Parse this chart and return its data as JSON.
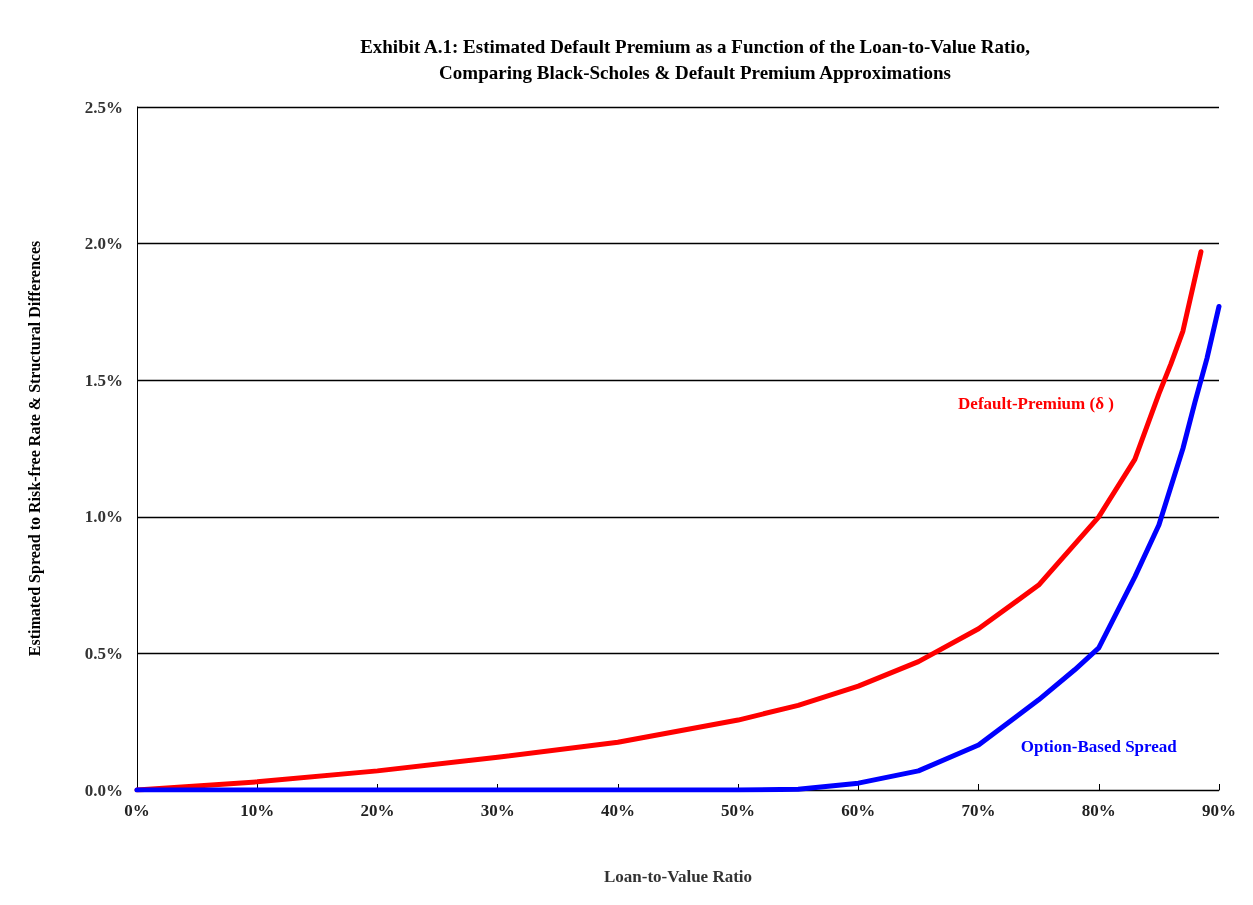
{
  "chart_data": {
    "type": "line",
    "title": "Exhibit A.1: Estimated Default Premium as a Function of the Loan-to-Value Ratio,\nComparing Black-Scholes & Default Premium Approximations",
    "xlabel": "Loan-to-Value Ratio",
    "ylabel": "Estimated Spread to Risk-free Rate & Structural Differences",
    "series": [
      {
        "name": "Default-Premium (δ )",
        "color": "#ff0000",
        "x": [
          0,
          10,
          20,
          30,
          40,
          50,
          55,
          60,
          65,
          70,
          75,
          80,
          83,
          85,
          86,
          87,
          88.5
        ],
        "values": [
          0,
          0.03,
          0.07,
          0.12,
          0.175,
          0.256,
          0.31,
          0.38,
          0.47,
          0.59,
          0.75,
          1.0,
          1.21,
          1.45,
          1.56,
          1.68,
          1.97
        ]
      },
      {
        "name": "Option-Based Spread",
        "color": "#0000ff",
        "x": [
          0,
          10,
          20,
          30,
          40,
          50,
          55,
          60,
          65,
          70,
          75,
          78,
          80,
          83,
          85,
          87,
          88,
          89,
          90
        ],
        "values": [
          0,
          0,
          0,
          0,
          0,
          0,
          0.003,
          0.025,
          0.07,
          0.165,
          0.33,
          0.44,
          0.52,
          0.78,
          0.97,
          1.25,
          1.42,
          1.58,
          1.77
        ]
      }
    ],
    "xlim": [
      0,
      90
    ],
    "xticks": [
      {
        "value": 0,
        "label": "0%"
      },
      {
        "value": 10,
        "label": "10%"
      },
      {
        "value": 20,
        "label": "20%"
      },
      {
        "value": 30,
        "label": "30%"
      },
      {
        "value": 40,
        "label": "40%"
      },
      {
        "value": 50,
        "label": "50%"
      },
      {
        "value": 60,
        "label": "60%"
      },
      {
        "value": 70,
        "label": "70%"
      },
      {
        "value": 80,
        "label": "80%"
      },
      {
        "value": 90,
        "label": "90%"
      }
    ],
    "ylim": [
      0,
      2.5
    ],
    "yticks": [
      {
        "value": 0,
        "label": "0.0%"
      },
      {
        "value": 0.5,
        "label": "0.5%"
      },
      {
        "value": 1,
        "label": "1.0%"
      },
      {
        "value": 1.5,
        "label": "1.5%"
      },
      {
        "value": 2,
        "label": "2.0%"
      },
      {
        "value": 2.5,
        "label": "2.5%"
      }
    ],
    "grid": "y",
    "legend": false,
    "marker": "none",
    "line_style": "solid"
  }
}
